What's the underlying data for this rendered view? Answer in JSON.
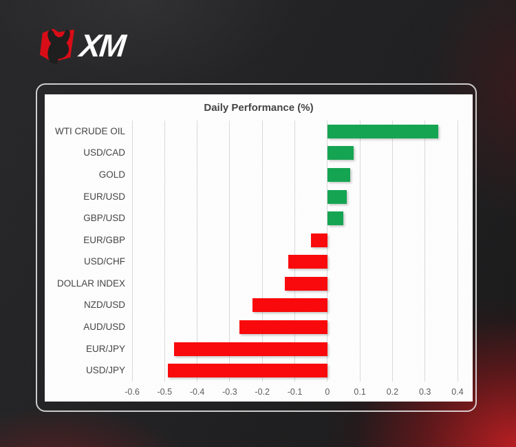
{
  "logo": {
    "brand": "XM"
  },
  "chart_data": {
    "type": "bar",
    "orientation": "horizontal",
    "title": "Daily Performance (%)",
    "categories": [
      "WTI CRUDE OIL",
      "USD/CAD",
      "GOLD",
      "EUR/USD",
      "GBP/USD",
      "EUR/GBP",
      "USD/CHF",
      "DOLLAR INDEX",
      "NZD/USD",
      "AUD/USD",
      "EUR/JPY",
      "USD/JPY"
    ],
    "values": [
      0.34,
      0.08,
      0.07,
      0.06,
      0.05,
      -0.05,
      -0.12,
      -0.13,
      -0.23,
      -0.27,
      -0.47,
      -0.49
    ],
    "xlim": [
      -0.6,
      0.4
    ],
    "tick_labels": [
      "-0.6",
      "-0.5",
      "-0.4",
      "-0.3",
      "-0.2",
      "-0.1",
      "0",
      "0.1",
      "0.2",
      "0.3",
      "0.4"
    ],
    "grid": true,
    "legend": "none",
    "colors": {
      "positive": "#0fa44e",
      "negative": "#fb0306",
      "gridline": "#d9d9d9",
      "title_text": "#3f3f3f",
      "label_text": "#404040",
      "tick_text": "#595959",
      "logo_red": "#d90711",
      "card_white": "#ffffff"
    }
  }
}
